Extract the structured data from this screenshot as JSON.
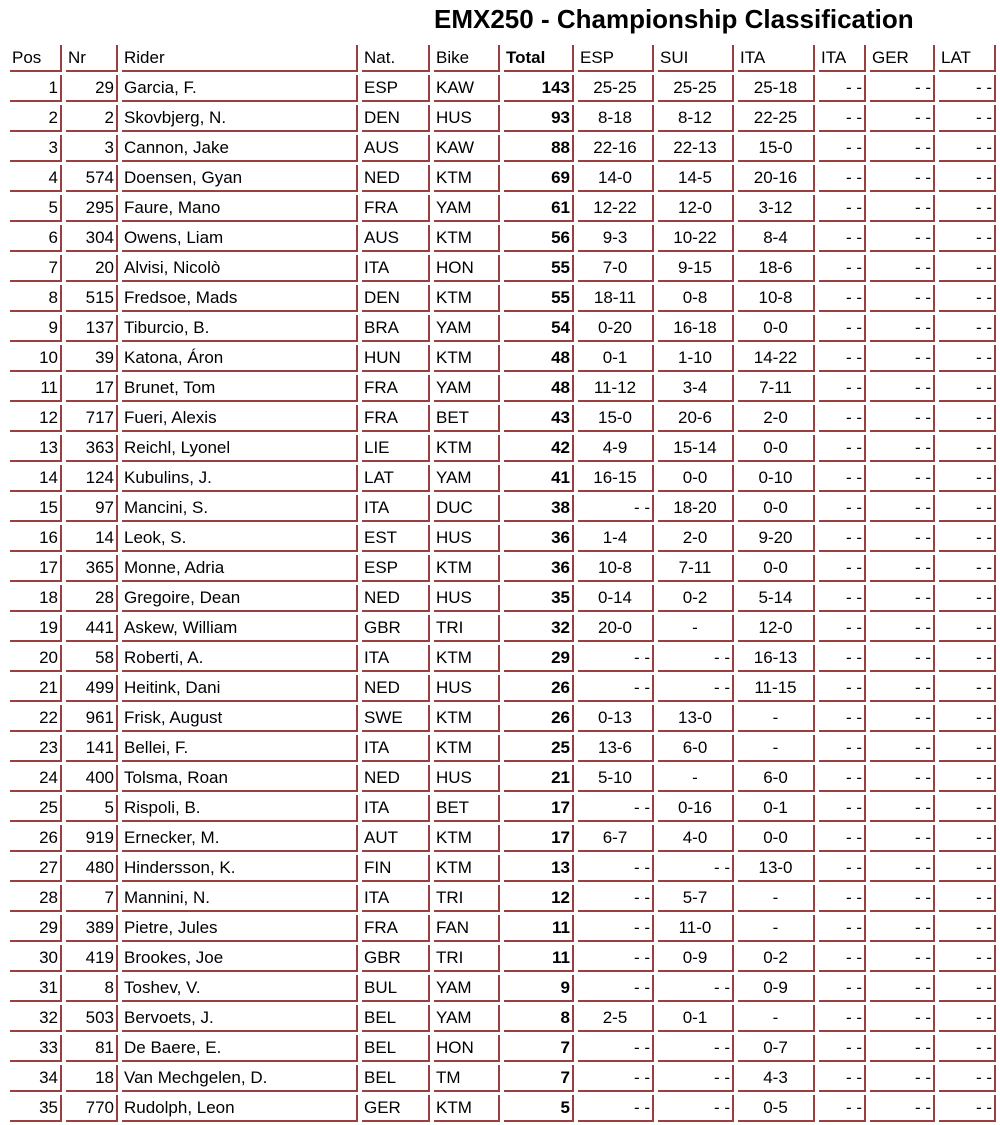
{
  "title": "EMX250 - Championship Classification",
  "colors": {
    "border": "#9a3e3e",
    "text": "#000000",
    "background": "#ffffff"
  },
  "columns": [
    "Pos",
    "Nr",
    "Rider",
    "Nat.",
    "Bike",
    "Total",
    "ESP",
    "SUI",
    "ITA",
    "ITA",
    "GER",
    "LAT"
  ],
  "rows": [
    {
      "pos": "1",
      "nr": "29",
      "rider": "Garcia, F.",
      "nat": "ESP",
      "bike": "KAW",
      "total": "143",
      "results": [
        "25-25",
        "25-25",
        "25-18",
        "- -",
        "- -",
        "- -"
      ]
    },
    {
      "pos": "2",
      "nr": "2",
      "rider": "Skovbjerg, N.",
      "nat": "DEN",
      "bike": "HUS",
      "total": "93",
      "results": [
        "8-18",
        "8-12",
        "22-25",
        "- -",
        "- -",
        "- -"
      ]
    },
    {
      "pos": "3",
      "nr": "3",
      "rider": "Cannon, Jake",
      "nat": "AUS",
      "bike": "KAW",
      "total": "88",
      "results": [
        "22-16",
        "22-13",
        "15-0",
        "- -",
        "- -",
        "- -"
      ]
    },
    {
      "pos": "4",
      "nr": "574",
      "rider": "Doensen, Gyan",
      "nat": "NED",
      "bike": "KTM",
      "total": "69",
      "results": [
        "14-0",
        "14-5",
        "20-16",
        "- -",
        "- -",
        "- -"
      ]
    },
    {
      "pos": "5",
      "nr": "295",
      "rider": "Faure, Mano",
      "nat": "FRA",
      "bike": "YAM",
      "total": "61",
      "results": [
        "12-22",
        "12-0",
        "3-12",
        "- -",
        "- -",
        "- -"
      ]
    },
    {
      "pos": "6",
      "nr": "304",
      "rider": "Owens, Liam",
      "nat": "AUS",
      "bike": "KTM",
      "total": "56",
      "results": [
        "9-3",
        "10-22",
        "8-4",
        "- -",
        "- -",
        "- -"
      ]
    },
    {
      "pos": "7",
      "nr": "20",
      "rider": "Alvisi, Nicolò",
      "nat": "ITA",
      "bike": "HON",
      "total": "55",
      "results": [
        "7-0",
        "9-15",
        "18-6",
        "- -",
        "- -",
        "- -"
      ]
    },
    {
      "pos": "8",
      "nr": "515",
      "rider": "Fredsoe, Mads",
      "nat": "DEN",
      "bike": "KTM",
      "total": "55",
      "results": [
        "18-11",
        "0-8",
        "10-8",
        "- -",
        "- -",
        "- -"
      ]
    },
    {
      "pos": "9",
      "nr": "137",
      "rider": "Tiburcio, B.",
      "nat": "BRA",
      "bike": "YAM",
      "total": "54",
      "results": [
        "0-20",
        "16-18",
        "0-0",
        "- -",
        "- -",
        "- -"
      ]
    },
    {
      "pos": "10",
      "nr": "39",
      "rider": "Katona, Áron",
      "nat": "HUN",
      "bike": "KTM",
      "total": "48",
      "results": [
        "0-1",
        "1-10",
        "14-22",
        "- -",
        "- -",
        "- -"
      ]
    },
    {
      "pos": "11",
      "nr": "17",
      "rider": "Brunet, Tom",
      "nat": "FRA",
      "bike": "YAM",
      "total": "48",
      "results": [
        "11-12",
        "3-4",
        "7-11",
        "- -",
        "- -",
        "- -"
      ]
    },
    {
      "pos": "12",
      "nr": "717",
      "rider": "Fueri, Alexis",
      "nat": "FRA",
      "bike": "BET",
      "total": "43",
      "results": [
        "15-0",
        "20-6",
        "2-0",
        "- -",
        "- -",
        "- -"
      ]
    },
    {
      "pos": "13",
      "nr": "363",
      "rider": "Reichl, Lyonel",
      "nat": "LIE",
      "bike": "KTM",
      "total": "42",
      "results": [
        "4-9",
        "15-14",
        "0-0",
        "- -",
        "- -",
        "- -"
      ]
    },
    {
      "pos": "14",
      "nr": "124",
      "rider": "Kubulins, J.",
      "nat": "LAT",
      "bike": "YAM",
      "total": "41",
      "results": [
        "16-15",
        "0-0",
        "0-10",
        "- -",
        "- -",
        "- -"
      ]
    },
    {
      "pos": "15",
      "nr": "97",
      "rider": "Mancini, S.",
      "nat": "ITA",
      "bike": "DUC",
      "total": "38",
      "results": [
        "- -",
        "18-20",
        "0-0",
        "- -",
        "- -",
        "- -"
      ]
    },
    {
      "pos": "16",
      "nr": "14",
      "rider": "Leok, S.",
      "nat": "EST",
      "bike": "HUS",
      "total": "36",
      "results": [
        "1-4",
        "2-0",
        "9-20",
        "- -",
        "- -",
        "- -"
      ]
    },
    {
      "pos": "17",
      "nr": "365",
      "rider": "Monne, Adria",
      "nat": "ESP",
      "bike": "KTM",
      "total": "36",
      "results": [
        "10-8",
        "7-11",
        "0-0",
        "- -",
        "- -",
        "- -"
      ]
    },
    {
      "pos": "18",
      "nr": "28",
      "rider": "Gregoire, Dean",
      "nat": "NED",
      "bike": "HUS",
      "total": "35",
      "results": [
        "0-14",
        "0-2",
        "5-14",
        "- -",
        "- -",
        "- -"
      ]
    },
    {
      "pos": "19",
      "nr": "441",
      "rider": "Askew, William",
      "nat": "GBR",
      "bike": "TRI",
      "total": "32",
      "results": [
        "20-0",
        "-",
        "12-0",
        "- -",
        "- -",
        "- -"
      ]
    },
    {
      "pos": "20",
      "nr": "58",
      "rider": "Roberti, A.",
      "nat": "ITA",
      "bike": "KTM",
      "total": "29",
      "results": [
        "- -",
        "- -",
        "16-13",
        "- -",
        "- -",
        "- -"
      ]
    },
    {
      "pos": "21",
      "nr": "499",
      "rider": "Heitink, Dani",
      "nat": "NED",
      "bike": "HUS",
      "total": "26",
      "results": [
        "- -",
        "- -",
        "11-15",
        "- -",
        "- -",
        "- -"
      ]
    },
    {
      "pos": "22",
      "nr": "961",
      "rider": "Frisk, August",
      "nat": "SWE",
      "bike": "KTM",
      "total": "26",
      "results": [
        "0-13",
        "13-0",
        "-",
        "- -",
        "- -",
        "- -"
      ]
    },
    {
      "pos": "23",
      "nr": "141",
      "rider": "Bellei, F.",
      "nat": "ITA",
      "bike": "KTM",
      "total": "25",
      "results": [
        "13-6",
        "6-0",
        "-",
        "- -",
        "- -",
        "- -"
      ]
    },
    {
      "pos": "24",
      "nr": "400",
      "rider": "Tolsma, Roan",
      "nat": "NED",
      "bike": "HUS",
      "total": "21",
      "results": [
        "5-10",
        "-",
        "6-0",
        "- -",
        "- -",
        "- -"
      ]
    },
    {
      "pos": "25",
      "nr": "5",
      "rider": "Rispoli, B.",
      "nat": "ITA",
      "bike": "BET",
      "total": "17",
      "results": [
        "- -",
        "0-16",
        "0-1",
        "- -",
        "- -",
        "- -"
      ]
    },
    {
      "pos": "26",
      "nr": "919",
      "rider": "Ernecker, M.",
      "nat": "AUT",
      "bike": "KTM",
      "total": "17",
      "results": [
        "6-7",
        "4-0",
        "0-0",
        "- -",
        "- -",
        "- -"
      ]
    },
    {
      "pos": "27",
      "nr": "480",
      "rider": "Hindersson, K.",
      "nat": "FIN",
      "bike": "KTM",
      "total": "13",
      "results": [
        "- -",
        "- -",
        "13-0",
        "- -",
        "- -",
        "- -"
      ]
    },
    {
      "pos": "28",
      "nr": "7",
      "rider": "Mannini, N.",
      "nat": "ITA",
      "bike": "TRI",
      "total": "12",
      "results": [
        "- -",
        "5-7",
        "-",
        "- -",
        "- -",
        "- -"
      ]
    },
    {
      "pos": "29",
      "nr": "389",
      "rider": "Pietre, Jules",
      "nat": "FRA",
      "bike": "FAN",
      "total": "11",
      "results": [
        "- -",
        "11-0",
        "-",
        "- -",
        "- -",
        "- -"
      ]
    },
    {
      "pos": "30",
      "nr": "419",
      "rider": "Brookes, Joe",
      "nat": "GBR",
      "bike": "TRI",
      "total": "11",
      "results": [
        "- -",
        "0-9",
        "0-2",
        "- -",
        "- -",
        "- -"
      ]
    },
    {
      "pos": "31",
      "nr": "8",
      "rider": "Toshev, V.",
      "nat": "BUL",
      "bike": "YAM",
      "total": "9",
      "results": [
        "- -",
        "- -",
        "0-9",
        "- -",
        "- -",
        "- -"
      ]
    },
    {
      "pos": "32",
      "nr": "503",
      "rider": "Bervoets, J.",
      "nat": "BEL",
      "bike": "YAM",
      "total": "8",
      "results": [
        "2-5",
        "0-1",
        "-",
        "- -",
        "- -",
        "- -"
      ]
    },
    {
      "pos": "33",
      "nr": "81",
      "rider": "De Baere, E.",
      "nat": "BEL",
      "bike": "HON",
      "total": "7",
      "results": [
        "- -",
        "- -",
        "0-7",
        "- -",
        "- -",
        "- -"
      ]
    },
    {
      "pos": "34",
      "nr": "18",
      "rider": "Van Mechgelen, D.",
      "nat": "BEL",
      "bike": "TM",
      "total": "7",
      "results": [
        "- -",
        "- -",
        "4-3",
        "- -",
        "- -",
        "- -"
      ]
    },
    {
      "pos": "35",
      "nr": "770",
      "rider": "Rudolph, Leon",
      "nat": "GER",
      "bike": "KTM",
      "total": "5",
      "results": [
        "- -",
        "- -",
        "0-5",
        "- -",
        "- -",
        "- -"
      ]
    }
  ]
}
